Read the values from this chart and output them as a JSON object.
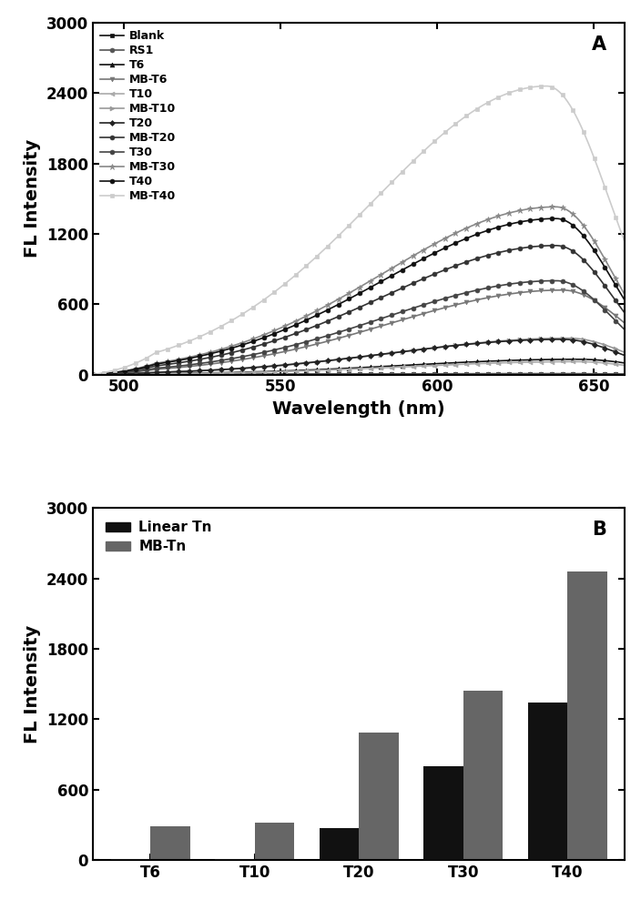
{
  "panel_A": {
    "xlabel": "Wavelength (nm)",
    "ylabel": "FL Intensity",
    "xlim": [
      490,
      660
    ],
    "ylim": [
      0,
      3000
    ],
    "yticks": [
      0,
      600,
      1200,
      1800,
      2400,
      3000
    ],
    "xticks": [
      500,
      550,
      600,
      650
    ],
    "series": [
      {
        "label": "Blank",
        "color": "#111111",
        "marker": "s",
        "markersize": 3.5,
        "linewidth": 1.2,
        "peak_val": 5,
        "peak_wl": 640,
        "sigma_l": 60,
        "sigma_r": 15
      },
      {
        "label": "RS1",
        "color": "#555555",
        "marker": "o",
        "markersize": 3.5,
        "linewidth": 1.2,
        "peak_val": 8,
        "peak_wl": 640,
        "sigma_l": 60,
        "sigma_r": 15
      },
      {
        "label": "T6",
        "color": "#111111",
        "marker": "^",
        "markersize": 3.5,
        "linewidth": 1.2,
        "peak_val": 130,
        "peak_wl": 645,
        "sigma_l": 55,
        "sigma_r": 20
      },
      {
        "label": "MB-T6",
        "color": "#777777",
        "marker": "v",
        "markersize": 3.5,
        "linewidth": 1.2,
        "peak_val": 720,
        "peak_wl": 640,
        "sigma_l": 55,
        "sigma_r": 20
      },
      {
        "label": "T10",
        "color": "#aaaaaa",
        "marker": "<",
        "markersize": 3.5,
        "linewidth": 1.2,
        "peak_val": 110,
        "peak_wl": 645,
        "sigma_l": 55,
        "sigma_r": 18
      },
      {
        "label": "MB-T10",
        "color": "#999999",
        "marker": ">",
        "markersize": 3.5,
        "linewidth": 1.2,
        "peak_val": 310,
        "peak_wl": 642,
        "sigma_l": 55,
        "sigma_r": 18
      },
      {
        "label": "T20",
        "color": "#222222",
        "marker": "D",
        "markersize": 3.0,
        "linewidth": 1.2,
        "peak_val": 300,
        "peak_wl": 640,
        "sigma_l": 55,
        "sigma_r": 18
      },
      {
        "label": "MB-T20",
        "color": "#333333",
        "marker": "o",
        "markersize": 3.5,
        "linewidth": 1.2,
        "peak_val": 1100,
        "peak_wl": 638,
        "sigma_l": 55,
        "sigma_r": 18
      },
      {
        "label": "T30",
        "color": "#444444",
        "marker": "o",
        "markersize": 3.5,
        "linewidth": 1.2,
        "peak_val": 800,
        "peak_wl": 638,
        "sigma_l": 55,
        "sigma_r": 18
      },
      {
        "label": "MB-T30",
        "color": "#888888",
        "marker": "*",
        "markersize": 4.5,
        "linewidth": 1.2,
        "peak_val": 1430,
        "peak_wl": 638,
        "sigma_l": 55,
        "sigma_r": 18
      },
      {
        "label": "T40",
        "color": "#111111",
        "marker": "o",
        "markersize": 3.5,
        "linewidth": 1.2,
        "peak_val": 1330,
        "peak_wl": 638,
        "sigma_l": 55,
        "sigma_r": 18
      },
      {
        "label": "MB-T40",
        "color": "#cccccc",
        "marker": "s",
        "markersize": 3.5,
        "linewidth": 1.2,
        "peak_val": 2460,
        "peak_wl": 635,
        "sigma_l": 55,
        "sigma_r": 20
      }
    ]
  },
  "panel_B": {
    "ylabel": "FL Intensity",
    "ylim": [
      0,
      3000
    ],
    "yticks": [
      0,
      600,
      1200,
      1800,
      2400,
      3000
    ],
    "categories": [
      "T6",
      "T10",
      "T20",
      "T30",
      "T40"
    ],
    "linear_values": [
      5,
      10,
      270,
      800,
      1340
    ],
    "mb_values": [
      290,
      320,
      1090,
      1440,
      2460
    ],
    "color_linear": "#111111",
    "color_mb": "#666666",
    "legend_linear": "Linear Tn",
    "legend_mb": "MB-Tn"
  },
  "background_color": "#ffffff"
}
